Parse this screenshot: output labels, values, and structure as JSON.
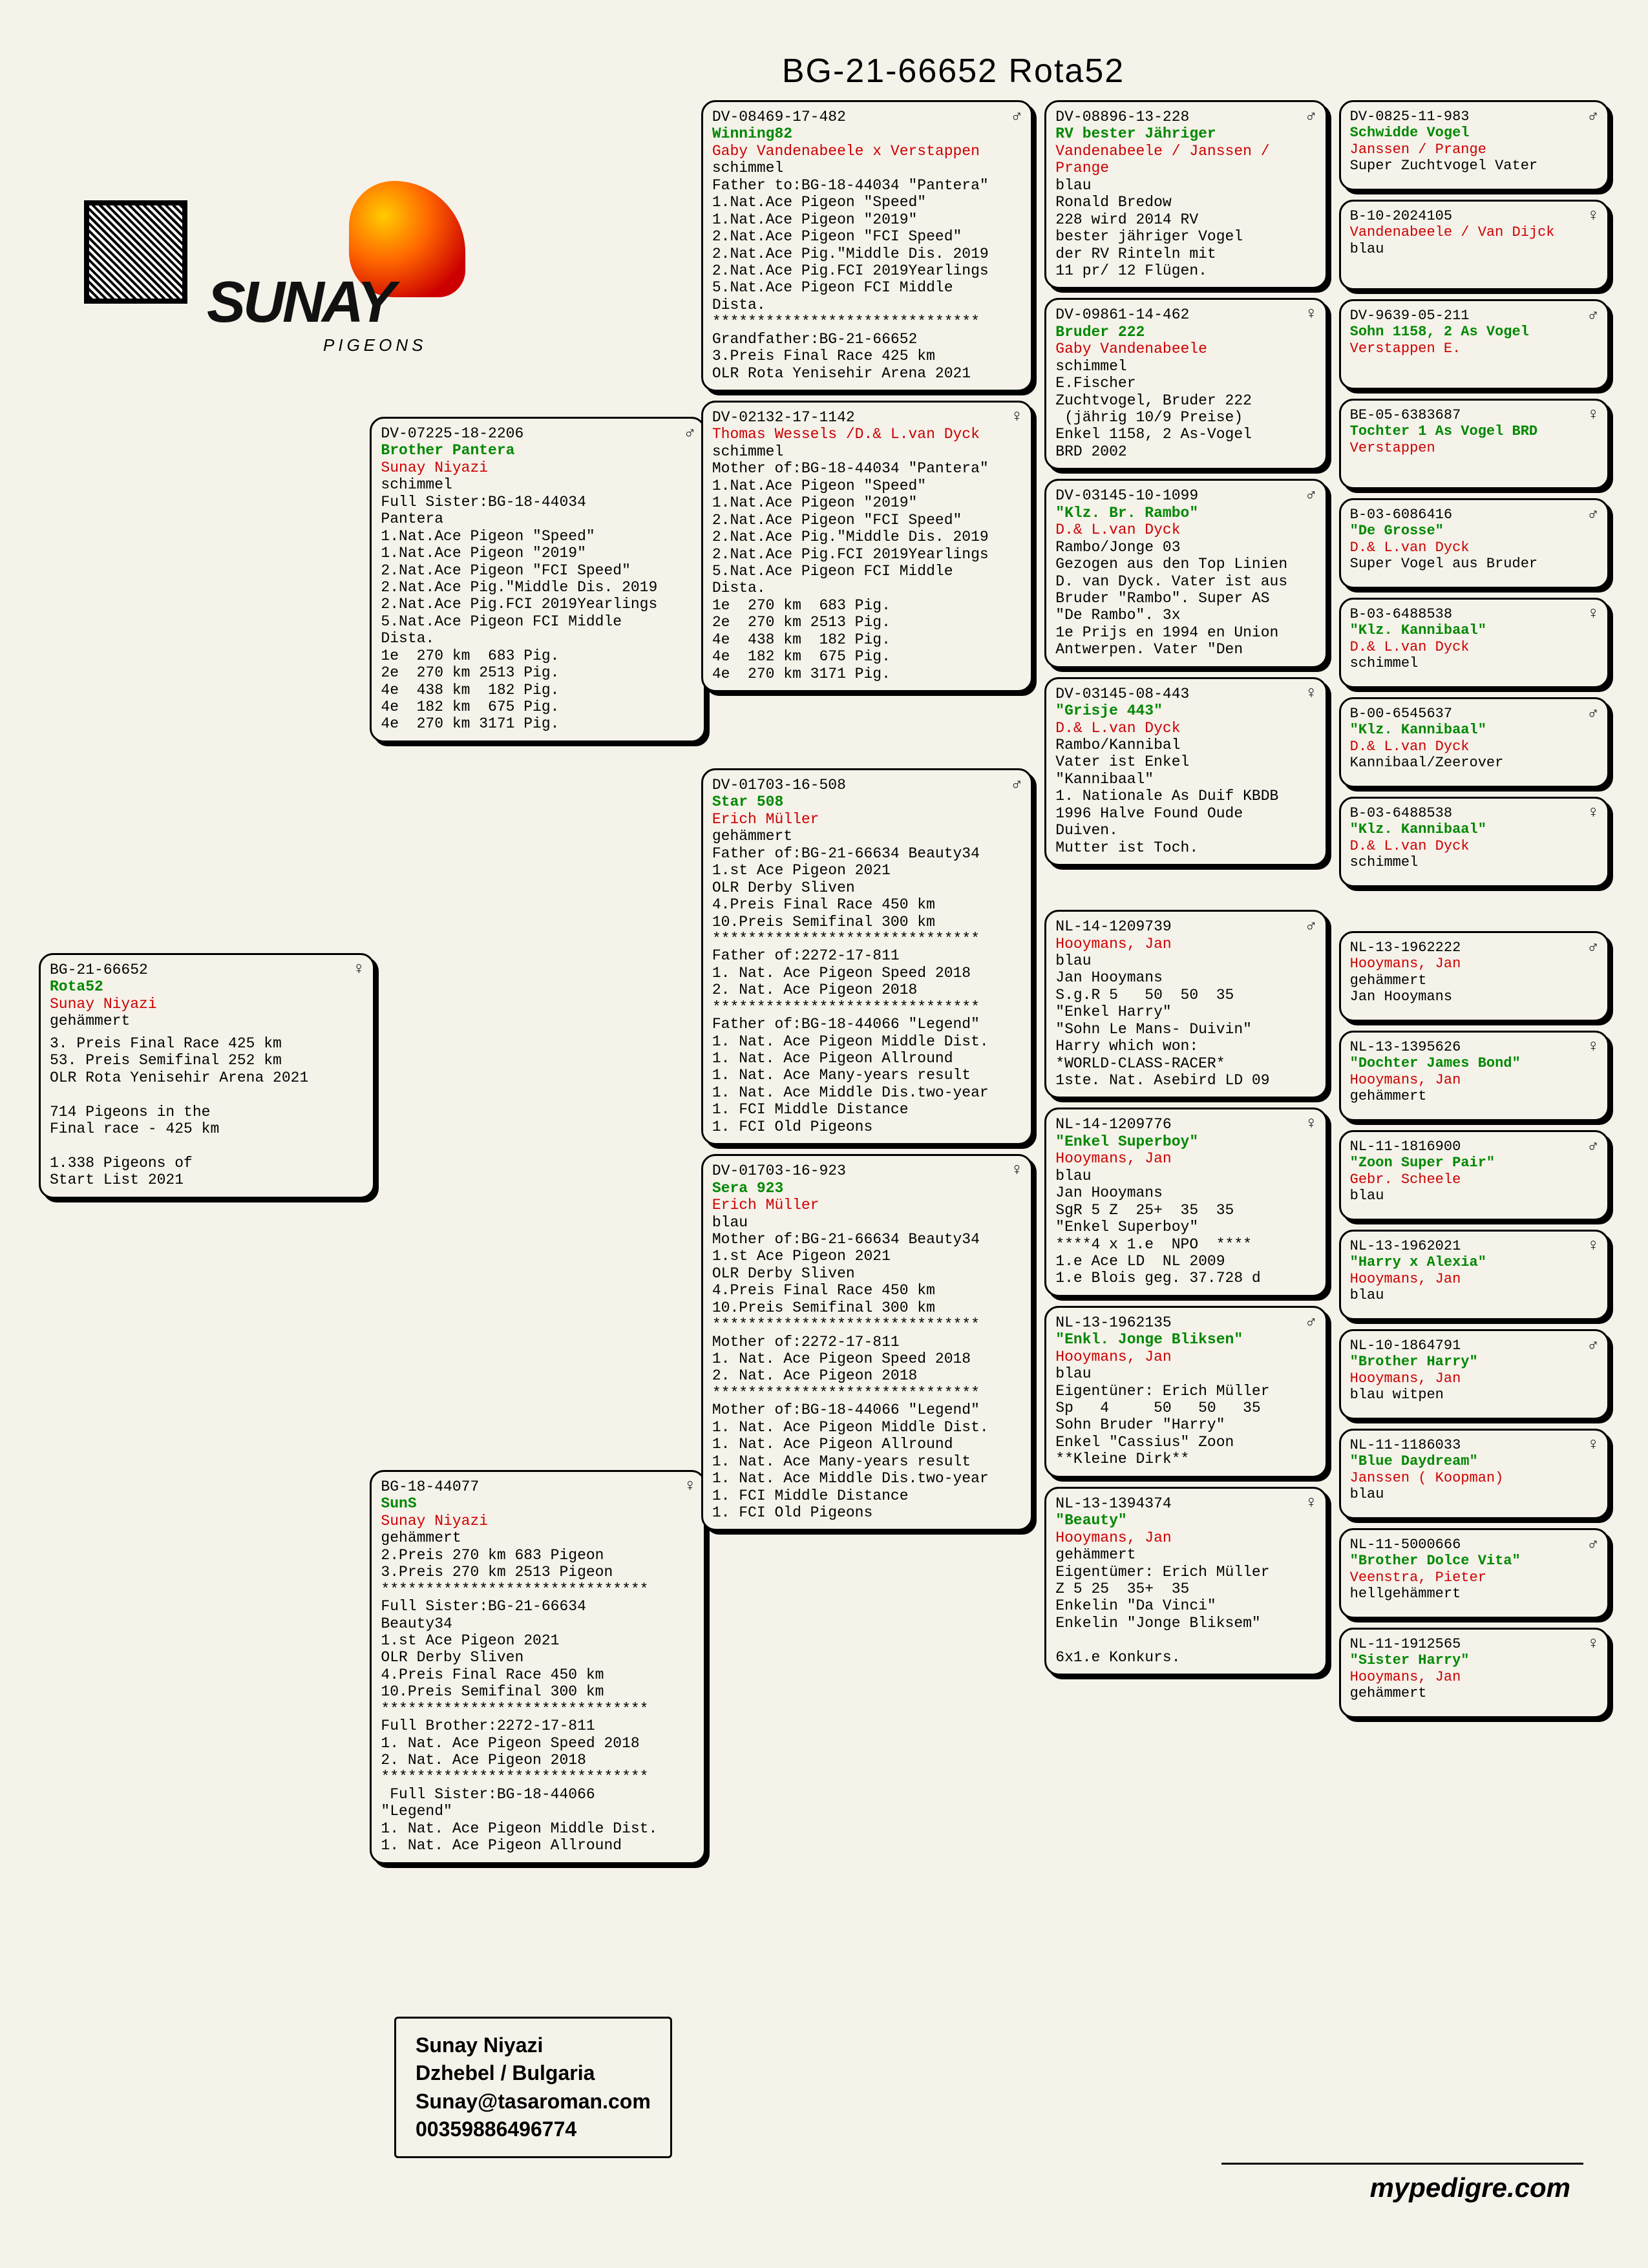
{
  "title": "BG-21-66652 Rota52",
  "logo": {
    "brand": "SUNAY",
    "sub": "PIGEONS"
  },
  "contact": {
    "name": "Sunay Niyazi",
    "city": "Dzhebel / Bulgaria",
    "email": "Sunay@tasaroman.com",
    "phone": "00359886496774"
  },
  "footer": "mypedigre.com",
  "gen0": {
    "ring": "BG-21-66652",
    "sex": "♀",
    "name": "Rota52",
    "owner": "Sunay Niyazi",
    "color": "gehämmert",
    "body": "3. Preis Final Race 425 km\n53. Preis Semifinal 252 km\nOLR Rota Yenisehir Arena 2021\n\n714 Pigeons in the\nFinal race - 425 km\n\n1.338 Pigeons of\nStart List 2021"
  },
  "gen1": {
    "sire": {
      "ring": "DV-07225-18-2206",
      "sex": "♂",
      "name": "Brother Pantera",
      "owner": "Sunay Niyazi",
      "color": "schimmel",
      "body": "Full Sister:BG-18-44034\nPantera\n1.Nat.Ace Pigeon \"Speed\"\n1.Nat.Ace Pigeon \"2019\"\n2.Nat.Ace Pigeon \"FCI Speed\"\n2.Nat.Ace Pig.\"Middle Dis. 2019\n2.Nat.Ace Pig.FCI 2019Yearlings\n5.Nat.Ace Pigeon FCI Middle\nDista.\n1e  270 km  683 Pig.\n2e  270 km 2513 Pig.\n4e  438 km  182 Pig.\n4e  182 km  675 Pig.\n4e  270 km 3171 Pig."
    },
    "dam": {
      "ring": "BG-18-44077",
      "sex": "♀",
      "name": "SunS",
      "owner": "Sunay Niyazi",
      "color": "gehämmert",
      "body": "2.Preis 270 km 683 Pigeon\n3.Preis 270 km 2513 Pigeon\n******************************\nFull Sister:BG-21-66634\nBeauty34\n1.st Ace Pigeon 2021\nOLR Derby Sliven\n4.Preis Final Race 450 km\n10.Preis Semifinal 300 km\n******************************\nFull Brother:2272-17-811\n1. Nat. Ace Pigeon Speed 2018\n2. Nat. Ace Pigeon 2018\n******************************\n Full Sister:BG-18-44066\n\"Legend\"\n1. Nat. Ace Pigeon Middle Dist.\n1. Nat. Ace Pigeon Allround"
    }
  },
  "gen2": [
    {
      "ring": "DV-08469-17-482",
      "sex": "♂",
      "name": "Winning82",
      "owner": "Gaby Vandenabeele x Verstappen",
      "color": "schimmel",
      "body": "Father to:BG-18-44034 \"Pantera\"\n1.Nat.Ace Pigeon \"Speed\"\n1.Nat.Ace Pigeon \"2019\"\n2.Nat.Ace Pigeon \"FCI Speed\"\n2.Nat.Ace Pig.\"Middle Dis. 2019\n2.Nat.Ace Pig.FCI 2019Yearlings\n5.Nat.Ace Pigeon FCI Middle\nDista.\n******************************\nGrandfather:BG-21-66652\n3.Preis Final Race 425 km\nOLR Rota Yenisehir Arena 2021"
    },
    {
      "ring": "DV-02132-17-1142",
      "sex": "♀",
      "name": "",
      "owner": "Thomas Wessels /D.& L.van Dyck",
      "color": "schimmel",
      "body": "Mother of:BG-18-44034 \"Pantera\"\n1.Nat.Ace Pigeon \"Speed\"\n1.Nat.Ace Pigeon \"2019\"\n2.Nat.Ace Pigeon \"FCI Speed\"\n2.Nat.Ace Pig.\"Middle Dis. 2019\n2.Nat.Ace Pig.FCI 2019Yearlings\n5.Nat.Ace Pigeon FCI Middle\nDista.\n1e  270 km  683 Pig.\n2e  270 km 2513 Pig.\n4e  438 km  182 Pig.\n4e  182 km  675 Pig.\n4e  270 km 3171 Pig."
    },
    {
      "ring": "DV-01703-16-508",
      "sex": "♂",
      "name": "Star 508",
      "owner": "Erich Müller",
      "color": "gehämmert",
      "body": "Father of:BG-21-66634 Beauty34\n1.st Ace Pigeon 2021\nOLR Derby Sliven\n4.Preis Final Race 450 km\n10.Preis Semifinal 300 km\n******************************\nFather of:2272-17-811\n1. Nat. Ace Pigeon Speed 2018\n2. Nat. Ace Pigeon 2018\n******************************\nFather of:BG-18-44066 \"Legend\"\n1. Nat. Ace Pigeon Middle Dist.\n1. Nat. Ace Pigeon Allround\n1. Nat. Ace Many-years result\n1. Nat. Ace Middle Dis.two-year\n1. FCI Middle Distance\n1. FCI Old Pigeons"
    },
    {
      "ring": "DV-01703-16-923",
      "sex": "♀",
      "name": "Sera 923",
      "owner": "Erich Müller",
      "color": "blau",
      "body": "Mother of:BG-21-66634 Beauty34\n1.st Ace Pigeon 2021\nOLR Derby Sliven\n4.Preis Final Race 450 km\n10.Preis Semifinal 300 km\n******************************\nMother of:2272-17-811\n1. Nat. Ace Pigeon Speed 2018\n2. Nat. Ace Pigeon 2018\n******************************\nMother of:BG-18-44066 \"Legend\"\n1. Nat. Ace Pigeon Middle Dist.\n1. Nat. Ace Pigeon Allround\n1. Nat. Ace Many-years result\n1. Nat. Ace Middle Dis.two-year\n1. FCI Middle Distance\n1. FCI Old Pigeons"
    }
  ],
  "gen3": [
    {
      "ring": "DV-08896-13-228",
      "sex": "♂",
      "name": "RV bester Jähriger",
      "owner": "Vandenabeele / Janssen / Prange",
      "color": "blau",
      "body": "Ronald Bredow\n228 wird 2014 RV\nbester jähriger Vogel\nder RV Rinteln mit\n11 pr/ 12 Flügen."
    },
    {
      "ring": "DV-09861-14-462",
      "sex": "♀",
      "name": "Bruder 222",
      "owner": "Gaby Vandenabeele",
      "color": "schimmel",
      "body": "E.Fischer\nZuchtvogel, Bruder 222\n (jährig 10/9 Preise)\nEnkel 1158, 2 As-Vogel\nBRD 2002"
    },
    {
      "ring": "DV-03145-10-1099",
      "sex": "♂",
      "name": "\"Klz. Br. Rambo\"",
      "owner": "D.& L.van Dyck",
      "color": "",
      "body": "Rambo/Jonge 03\nGezogen aus den Top Linien\nD. van Dyck. Vater ist aus\nBruder \"Rambo\". Super AS\n\"De Rambo\". 3x\n1e Prijs en 1994 en Union\nAntwerpen. Vater \"Den"
    },
    {
      "ring": "DV-03145-08-443",
      "sex": "♀",
      "name": "\"Grisje 443\"",
      "owner": "D.& L.van Dyck",
      "color": "",
      "body": "Rambo/Kannibal\nVater ist Enkel\n\"Kannibaal\"\n1. Nationale As Duif KBDB\n1996 Halve Found Oude\nDuiven.\nMutter ist Toch."
    },
    {
      "ring": "NL-14-1209739",
      "sex": "♂",
      "name": "",
      "owner": "Hooymans, Jan",
      "color": "blau",
      "body": "Jan Hooymans\nS.g.R 5   50  50  35\n\"Enkel Harry\"\n\"Sohn Le Mans- Duivin\"\nHarry which won:\n*WORLD-CLASS-RACER*\n1ste. Nat. Asebird LD 09"
    },
    {
      "ring": "NL-14-1209776",
      "sex": "♀",
      "name": "\"Enkel Superboy\"",
      "owner": "Hooymans, Jan",
      "color": "blau",
      "body": "Jan Hooymans\nSgR 5 Z  25+  35  35\n\"Enkel Superboy\"\n****4 x 1.e  NPO  ****\n1.e Ace LD  NL 2009\n1.e Blois geg. 37.728 d"
    },
    {
      "ring": "NL-13-1962135",
      "sex": "♂",
      "name": "\"Enkl. Jonge Bliksen\"",
      "owner": "Hooymans, Jan",
      "color": "blau",
      "body": "Eigentüner: Erich Müller\nSp   4     50   50   35\nSohn Bruder \"Harry\"\nEnkel \"Cassius\" Zoon\n**Kleine Dirk**"
    },
    {
      "ring": "NL-13-1394374",
      "sex": "♀",
      "name": "\"Beauty\"",
      "owner": "Hooymans, Jan",
      "color": "gehämmert",
      "body": "Eigentümer: Erich Müller\nZ 5 25  35+  35\nEnkelin \"Da Vinci\"\nEnkelin \"Jonge Bliksem\"\n\n6x1.e Konkurs."
    }
  ],
  "gen4": [
    {
      "ring": "DV-0825-11-983",
      "sex": "♂",
      "name": "Schwidde Vogel",
      "owner": "Janssen / Prange",
      "body": "Super Zuchtvogel Vater"
    },
    {
      "ring": "B-10-2024105",
      "sex": "♀",
      "name": "",
      "owner": "Vandenabeele / Van Dijck",
      "body": "blau"
    },
    {
      "ring": "DV-9639-05-211",
      "sex": "♂",
      "name": "Sohn 1158, 2 As Vogel",
      "owner": "Verstappen E.",
      "body": ""
    },
    {
      "ring": "BE-05-6383687",
      "sex": "♀",
      "name": "Tochter 1 As Vogel BRD",
      "owner": "Verstappen",
      "body": ""
    },
    {
      "ring": "B-03-6086416",
      "sex": "♂",
      "name": "\"De Grosse\"",
      "owner": "D.& L.van Dyck",
      "body": "Super Vogel aus Bruder"
    },
    {
      "ring": "B-03-6488538",
      "sex": "♀",
      "name": "\"Klz. Kannibaal\"",
      "owner": "D.& L.van Dyck",
      "body": "schimmel"
    },
    {
      "ring": "B-00-6545637",
      "sex": "♂",
      "name": "\"Klz. Kannibaal\"",
      "owner": "D.& L.van Dyck",
      "body": "Kannibaal/Zeerover"
    },
    {
      "ring": "B-03-6488538",
      "sex": "♀",
      "name": "\"Klz. Kannibaal\"",
      "owner": "D.& L.van Dyck",
      "body": "schimmel"
    },
    {
      "ring": "NL-13-1962222",
      "sex": "♂",
      "name": "",
      "owner": "Hooymans, Jan",
      "body": "gehämmert\nJan Hooymans"
    },
    {
      "ring": "NL-13-1395626",
      "sex": "♀",
      "name": "\"Dochter James Bond\"",
      "owner": "Hooymans, Jan",
      "body": "gehämmert"
    },
    {
      "ring": "NL-11-1816900",
      "sex": "♂",
      "name": "\"Zoon Super Pair\"",
      "owner": "Gebr. Scheele",
      "body": "blau"
    },
    {
      "ring": "NL-13-1962021",
      "sex": "♀",
      "name": "\"Harry x Alexia\"",
      "owner": "Hooymans, Jan",
      "body": "blau"
    },
    {
      "ring": "NL-10-1864791",
      "sex": "♂",
      "name": "\"Brother Harry\"",
      "owner": "Hooymans, Jan",
      "body": "blau witpen"
    },
    {
      "ring": "NL-11-1186033",
      "sex": "♀",
      "name": "\"Blue Daydream\"",
      "owner": "Janssen ( Koopman)",
      "body": "blau"
    },
    {
      "ring": "NL-11-5000666",
      "sex": "♂",
      "name": "\"Brother Dolce Vita\"",
      "owner": "Veenstra, Pieter",
      "body": "hellgehämmert"
    },
    {
      "ring": "NL-11-1912565",
      "sex": "♀",
      "name": "\"Sister Harry\"",
      "owner": "Hooymans, Jan",
      "body": "gehämmert"
    }
  ]
}
